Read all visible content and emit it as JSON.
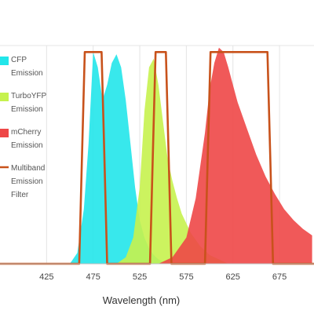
{
  "chart_data": {
    "type": "area",
    "title": "",
    "xlabel": "Wavelength (nm)",
    "ylabel": "",
    "xlim": [
      375,
      712
    ],
    "ylim": [
      0,
      100
    ],
    "xticks": [
      425,
      475,
      525,
      575,
      625,
      675
    ],
    "grid": true,
    "legend_position": "left",
    "series": [
      {
        "name": "CFP Emission",
        "color": "#22e6ea",
        "kind": "area",
        "x": [
          450,
          458,
          465,
          470,
          475,
          480,
          485,
          490,
          495,
          500,
          505,
          510,
          515,
          520,
          525,
          530,
          535,
          540,
          545,
          550,
          560
        ],
        "y": [
          0,
          5,
          25,
          55,
          97,
          90,
          75,
          82,
          92,
          96,
          90,
          75,
          55,
          35,
          20,
          12,
          7,
          4,
          2,
          1,
          0
        ]
      },
      {
        "name": "TurboYFP Emission",
        "color": "#c6f24e",
        "kind": "area",
        "x": [
          500,
          510,
          518,
          525,
          530,
          535,
          540,
          545,
          550,
          555,
          560,
          565,
          570,
          580,
          590,
          600,
          620
        ],
        "y": [
          0,
          3,
          12,
          35,
          70,
          90,
          94,
          82,
          65,
          48,
          38,
          30,
          23,
          14,
          8,
          4,
          0
        ]
      },
      {
        "name": "mCherry Emission",
        "color": "#ee4747",
        "kind": "area",
        "x": [
          545,
          560,
          575,
          585,
          595,
          600,
          605,
          610,
          615,
          620,
          625,
          630,
          640,
          650,
          660,
          670,
          680,
          690,
          700,
          710
        ],
        "y": [
          0,
          3,
          12,
          30,
          60,
          80,
          92,
          99,
          97,
          90,
          82,
          74,
          62,
          50,
          40,
          32,
          25,
          20,
          16,
          13
        ]
      },
      {
        "name": "Multiband Emission Filter",
        "color": "#c8521b",
        "kind": "line",
        "x": [
          375,
          460,
          463,
          466,
          484,
          487,
          490,
          536,
          539,
          542,
          553,
          556,
          559,
          595,
          598,
          601,
          662,
          665,
          668,
          712
        ],
        "y": [
          0,
          0,
          50,
          97,
          97,
          50,
          0,
          0,
          50,
          97,
          97,
          50,
          0,
          0,
          50,
          97,
          97,
          50,
          0,
          0
        ]
      }
    ]
  }
}
